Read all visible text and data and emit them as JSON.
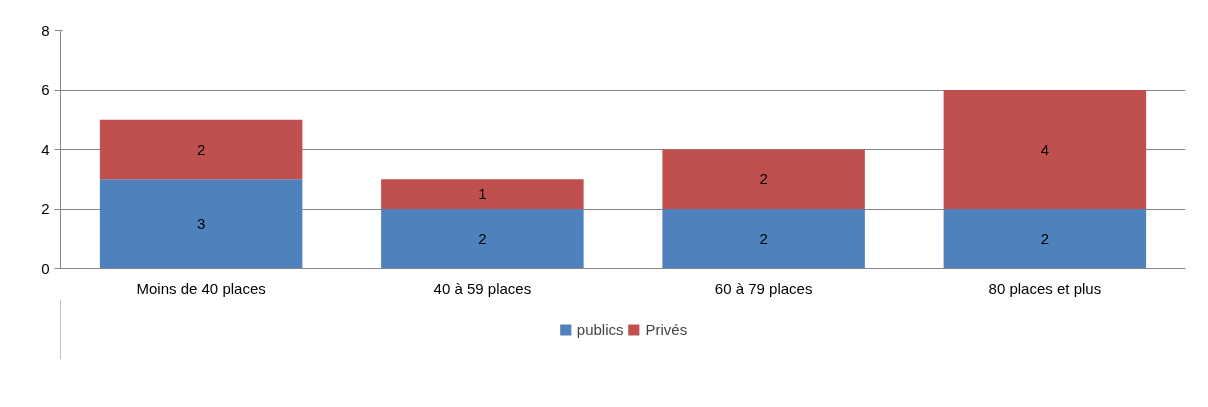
{
  "chart_data": {
    "type": "bar",
    "stacked": true,
    "categories": [
      "Moins de 40 places",
      "40 à 59 places",
      "60 à 79 places",
      "80 places et plus"
    ],
    "series": [
      {
        "name": "publics",
        "color": "#4f81bd",
        "values": [
          3,
          2,
          2,
          2
        ]
      },
      {
        "name": "Privés",
        "color": "#c0504d",
        "values": [
          2,
          1,
          2,
          4
        ]
      }
    ],
    "ylim": [
      0,
      8
    ],
    "yticks": [
      0,
      2,
      4,
      6,
      8
    ],
    "grid": "y",
    "legend": "bottom",
    "data_labels": true
  }
}
